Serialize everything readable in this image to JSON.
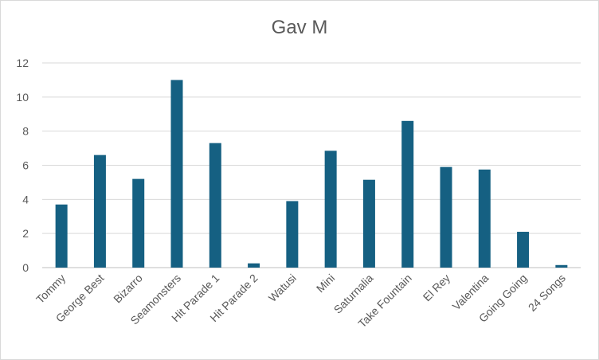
{
  "chart_data": {
    "type": "bar",
    "title": "Gav M",
    "xlabel": "",
    "ylabel": "",
    "ylim": [
      0,
      12
    ],
    "yticks": [
      0,
      2,
      4,
      6,
      8,
      10,
      12
    ],
    "grid": true,
    "legend": "none",
    "bar_color": "#156082",
    "categories": [
      "Tommy",
      "George Best",
      "Bizarro",
      "Seamonsters",
      "Hit Parade 1",
      "Hit Parade 2",
      "Watusi",
      "Mini",
      "Saturnalia",
      "Take Fountain",
      "El Rey",
      "Valentina",
      "Going Going",
      "24 Songs"
    ],
    "values": [
      3.7,
      6.6,
      5.2,
      11.0,
      7.3,
      0.25,
      3.9,
      6.85,
      5.15,
      8.6,
      5.9,
      5.75,
      2.1,
      0.15
    ]
  }
}
